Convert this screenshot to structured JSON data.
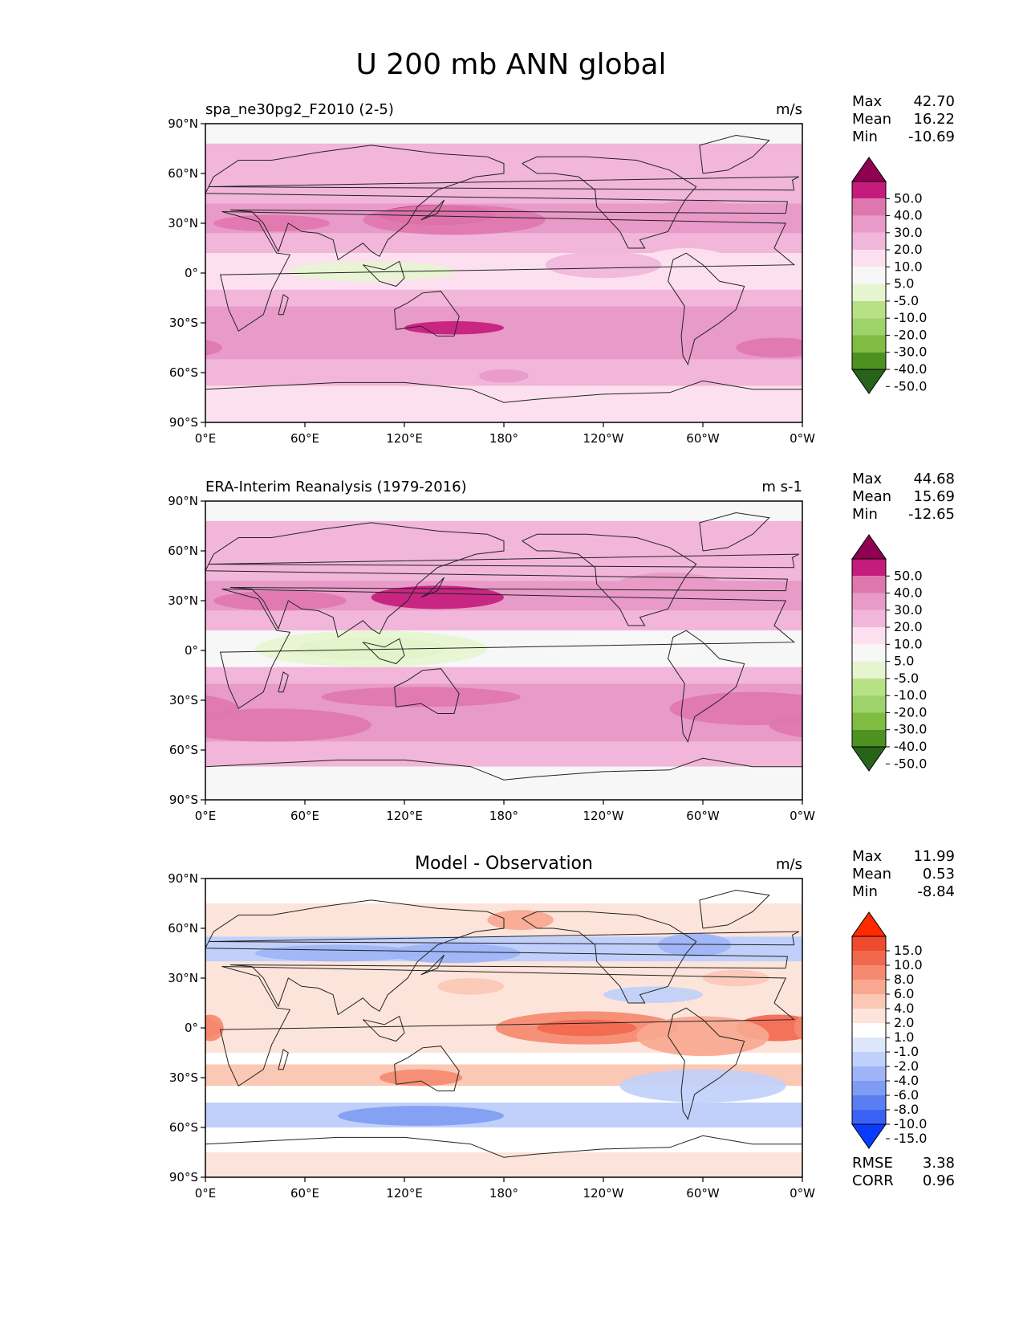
{
  "figure": {
    "title": "U 200 mb ANN global"
  },
  "chart_data": [
    {
      "type": "heatmap",
      "title_left": "spa_ne30pg2_F2010 (2-5)",
      "title_center": "",
      "units": "m/s",
      "x_ticks": [
        "0°E",
        "60°E",
        "120°E",
        "180°",
        "120°W",
        "60°W",
        "0°W"
      ],
      "y_ticks": [
        "90°N",
        "60°N",
        "30°N",
        "0°",
        "30°S",
        "60°S",
        "90°S"
      ],
      "stats": [
        {
          "label": "Max",
          "value": "42.70"
        },
        {
          "label": "Mean",
          "value": "16.22"
        },
        {
          "label": "Min",
          "value": "-10.69"
        }
      ],
      "colorbar": {
        "levels": [
          "50.0",
          "40.0",
          "30.0",
          "20.0",
          "10.0",
          "5.0",
          "-5.0",
          "-10.0",
          "-20.0",
          "-30.0",
          "-40.0",
          "-50.0"
        ],
        "colors": [
          "#8e0152",
          "#c51b7d",
          "#de77ae",
          "#e89ac8",
          "#f1b6da",
          "#fde0ef",
          "#f7f7f7",
          "#e6f5d0",
          "#b8e186",
          "#9dd36a",
          "#7fbc41",
          "#4d9221",
          "#276419"
        ]
      },
      "bands": [
        {
          "lat": [
            90,
            78
          ],
          "value": 3
        },
        {
          "lat": [
            78,
            62
          ],
          "value": 12
        },
        {
          "lat": [
            62,
            42
          ],
          "value": 18
        },
        {
          "lat": [
            42,
            24
          ],
          "value": 26
        },
        {
          "lat": [
            24,
            12
          ],
          "value": 12
        },
        {
          "lat": [
            12,
            -10
          ],
          "value": 6
        },
        {
          "lat": [
            -10,
            -20
          ],
          "value": 12
        },
        {
          "lat": [
            -20,
            -30
          ],
          "value": 20
        },
        {
          "lat": [
            -30,
            -52
          ],
          "value": 28
        },
        {
          "lat": [
            -52,
            -68
          ],
          "value": 15
        },
        {
          "lat": [
            -68,
            -90
          ],
          "value": 8
        }
      ],
      "features": [
        {
          "lon": 140,
          "lat": 35,
          "rx": 35,
          "ry": 6,
          "value": 42
        },
        {
          "lon": 40,
          "lat": 30,
          "rx": 35,
          "ry": 5,
          "value": 32
        },
        {
          "lon": 150,
          "lat": 32,
          "rx": 55,
          "ry": 9,
          "value": 32
        },
        {
          "lon": 100,
          "lat": 1,
          "rx": 50,
          "ry": 6,
          "value": -7
        },
        {
          "lon": 290,
          "lat": 8,
          "rx": 25,
          "ry": 7,
          "value": 6
        },
        {
          "lon": 240,
          "lat": 5,
          "rx": 35,
          "ry": 8,
          "value": 14
        },
        {
          "lon": 150,
          "lat": -33,
          "rx": 30,
          "ry": 4,
          "value": 40
        },
        {
          "lon": 345,
          "lat": -45,
          "rx": 25,
          "ry": 6,
          "value": 32
        },
        {
          "lon": 295,
          "lat": 35,
          "rx": 30,
          "ry": 9,
          "value": 24
        },
        {
          "lon": 180,
          "lat": -62,
          "rx": 15,
          "ry": 4,
          "value": 22
        }
      ]
    },
    {
      "type": "heatmap",
      "title_left": "ERA-Interim Reanalysis (1979-2016)",
      "title_center": "",
      "units": "m s-1",
      "x_ticks": [
        "0°E",
        "60°E",
        "120°E",
        "180°",
        "120°W",
        "60°W",
        "0°W"
      ],
      "y_ticks": [
        "90°N",
        "60°N",
        "30°N",
        "0°",
        "30°S",
        "60°S",
        "90°S"
      ],
      "stats": [
        {
          "label": "Max",
          "value": "44.68"
        },
        {
          "label": "Mean",
          "value": "15.69"
        },
        {
          "label": "Min",
          "value": "-12.65"
        }
      ],
      "colorbar": {
        "levels": [
          "50.0",
          "40.0",
          "30.0",
          "20.0",
          "10.0",
          "5.0",
          "-5.0",
          "-10.0",
          "-20.0",
          "-30.0",
          "-40.0",
          "-50.0"
        ],
        "colors": [
          "#8e0152",
          "#c51b7d",
          "#de77ae",
          "#e89ac8",
          "#f1b6da",
          "#fde0ef",
          "#f7f7f7",
          "#e6f5d0",
          "#b8e186",
          "#9dd36a",
          "#7fbc41",
          "#4d9221",
          "#276419"
        ]
      },
      "bands": [
        {
          "lat": [
            90,
            78
          ],
          "value": 3
        },
        {
          "lat": [
            78,
            62
          ],
          "value": 12
        },
        {
          "lat": [
            62,
            42
          ],
          "value": 18
        },
        {
          "lat": [
            42,
            24
          ],
          "value": 26
        },
        {
          "lat": [
            24,
            12
          ],
          "value": 12
        },
        {
          "lat": [
            12,
            -10
          ],
          "value": 4
        },
        {
          "lat": [
            -10,
            -20
          ],
          "value": 12
        },
        {
          "lat": [
            -20,
            -30
          ],
          "value": 20
        },
        {
          "lat": [
            -30,
            -55
          ],
          "value": 28
        },
        {
          "lat": [
            -55,
            -70
          ],
          "value": 15
        },
        {
          "lat": [
            -70,
            -90
          ],
          "value": 3
        }
      ],
      "features": [
        {
          "lon": 140,
          "lat": 32,
          "rx": 40,
          "ry": 7,
          "value": 42
        },
        {
          "lon": 45,
          "lat": 30,
          "rx": 40,
          "ry": 6,
          "value": 32
        },
        {
          "lon": 100,
          "lat": 1,
          "rx": 45,
          "ry": 7,
          "value": -12
        },
        {
          "lon": 100,
          "lat": 1,
          "rx": 70,
          "ry": 11,
          "value": -7
        },
        {
          "lon": 280,
          "lat": 37,
          "rx": 35,
          "ry": 10,
          "value": 24
        },
        {
          "lon": 130,
          "lat": -28,
          "rx": 60,
          "ry": 6,
          "value": 32
        },
        {
          "lon": 330,
          "lat": -35,
          "rx": 50,
          "ry": 10,
          "value": 32
        },
        {
          "lon": 40,
          "lat": -45,
          "rx": 60,
          "ry": 10,
          "value": 32
        },
        {
          "lon": 250,
          "lat": 0,
          "rx": 45,
          "ry": 10,
          "value": 2
        }
      ]
    },
    {
      "type": "heatmap",
      "title_left": "",
      "title_center": "Model - Observation",
      "units": "m/s",
      "x_ticks": [
        "0°E",
        "60°E",
        "120°E",
        "180°",
        "120°W",
        "60°W",
        "0°W"
      ],
      "y_ticks": [
        "90°N",
        "60°N",
        "30°N",
        "0°",
        "30°S",
        "60°S",
        "90°S"
      ],
      "stats": [
        {
          "label": "Max",
          "value": "11.99"
        },
        {
          "label": "Mean",
          "value": "0.53"
        },
        {
          "label": "Min",
          "value": "-8.84"
        }
      ],
      "extra_stats": [
        {
          "label": "RMSE",
          "value": "3.38"
        },
        {
          "label": "CORR",
          "value": "0.96"
        }
      ],
      "colorbar": {
        "levels": [
          "15.0",
          "10.0",
          "8.0",
          "6.0",
          "4.0",
          "2.0",
          "1.0",
          "-1.0",
          "-2.0",
          "-4.0",
          "-6.0",
          "-8.0",
          "-10.0",
          "-15.0"
        ],
        "colors": [
          "#ff2a00",
          "#f04a2e",
          "#f2684e",
          "#f58a70",
          "#f8a890",
          "#fbc8b5",
          "#fde4da",
          "#ffffff",
          "#dde6fb",
          "#c0d0fa",
          "#9eb4f6",
          "#7f9cf3",
          "#5a7ef2",
          "#3a63f5",
          "#0a3cff"
        ]
      },
      "bands": [
        {
          "lat": [
            90,
            75
          ],
          "value": 0
        },
        {
          "lat": [
            75,
            55
          ],
          "value": 1.5
        },
        {
          "lat": [
            55,
            40
          ],
          "value": -3
        },
        {
          "lat": [
            40,
            25
          ],
          "value": 1.5
        },
        {
          "lat": [
            25,
            -15
          ],
          "value": 1.5
        },
        {
          "lat": [
            -15,
            -22
          ],
          "value": 0
        },
        {
          "lat": [
            -22,
            -35
          ],
          "value": 2
        },
        {
          "lat": [
            -35,
            -45
          ],
          "value": 0
        },
        {
          "lat": [
            -45,
            -60
          ],
          "value": -4
        },
        {
          "lat": [
            -60,
            -75
          ],
          "value": 0
        },
        {
          "lat": [
            -75,
            -90
          ],
          "value": 1.5
        }
      ],
      "features": [
        {
          "lon": 230,
          "lat": 0,
          "rx": 55,
          "ry": 10,
          "value": 6
        },
        {
          "lon": 230,
          "lat": 0,
          "rx": 30,
          "ry": 5,
          "value": 9
        },
        {
          "lon": 345,
          "lat": 0,
          "rx": 25,
          "ry": 8,
          "value": 8
        },
        {
          "lon": 3,
          "lat": 0,
          "rx": 8,
          "ry": 8,
          "value": 6
        },
        {
          "lon": 300,
          "lat": -5,
          "rx": 40,
          "ry": 12,
          "value": 4
        },
        {
          "lon": 130,
          "lat": -30,
          "rx": 25,
          "ry": 5,
          "value": 6
        },
        {
          "lon": 130,
          "lat": -53,
          "rx": 50,
          "ry": 6,
          "value": -7
        },
        {
          "lon": 150,
          "lat": 45,
          "rx": 40,
          "ry": 6,
          "value": -6
        },
        {
          "lon": 80,
          "lat": 45,
          "rx": 50,
          "ry": 5,
          "value": -5
        },
        {
          "lon": 295,
          "lat": 50,
          "rx": 22,
          "ry": 7,
          "value": -6
        },
        {
          "lon": 300,
          "lat": -35,
          "rx": 50,
          "ry": 10,
          "value": -3
        },
        {
          "lon": 190,
          "lat": 65,
          "rx": 20,
          "ry": 6,
          "value": 5
        },
        {
          "lon": 270,
          "lat": 20,
          "rx": 30,
          "ry": 5,
          "value": -3
        },
        {
          "lon": 320,
          "lat": 30,
          "rx": 20,
          "ry": 5,
          "value": 3
        },
        {
          "lon": 160,
          "lat": 25,
          "rx": 20,
          "ry": 5,
          "value": 3
        }
      ]
    }
  ]
}
